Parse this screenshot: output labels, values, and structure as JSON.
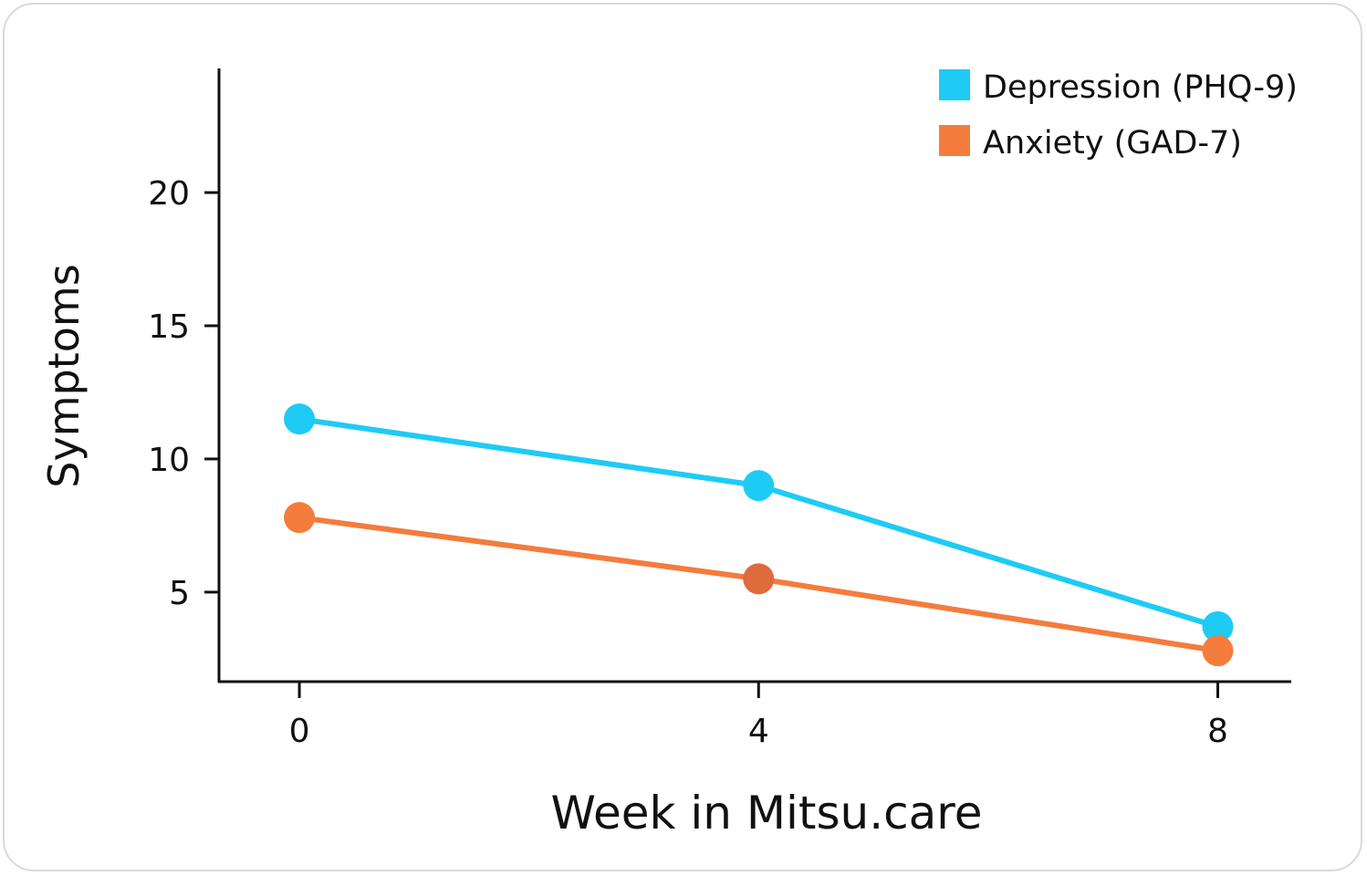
{
  "chart_data": {
    "type": "line",
    "title": "",
    "xlabel": "Week in Mitsu.care",
    "ylabel": "Symptoms",
    "x": [
      0,
      4,
      8
    ],
    "xticks": [
      "0",
      "4",
      "8"
    ],
    "xtick_values": [
      0,
      4,
      8
    ],
    "yticks": [
      "5",
      "10",
      "15",
      "20"
    ],
    "ytick_values": [
      5,
      10,
      15,
      20
    ],
    "xlim": [
      -0.7,
      8.64
    ],
    "ylim": [
      1.64,
      24.66
    ],
    "grid": false,
    "legend_position": "top-right",
    "series": [
      {
        "name": "Depression (PHQ-9)",
        "color": "#1ecbf5",
        "values": [
          11.5,
          9.0,
          3.7
        ],
        "marker_colors": [
          "#1ecbf5",
          "#1ecbf5",
          "#1ecbf5"
        ]
      },
      {
        "name": "Anxiety (GAD-7)",
        "color": "#f47c3c",
        "values": [
          7.8,
          5.5,
          2.8
        ],
        "marker_colors": [
          "#f47c3c",
          "#df6a3c",
          "#f47c3c"
        ]
      }
    ]
  }
}
